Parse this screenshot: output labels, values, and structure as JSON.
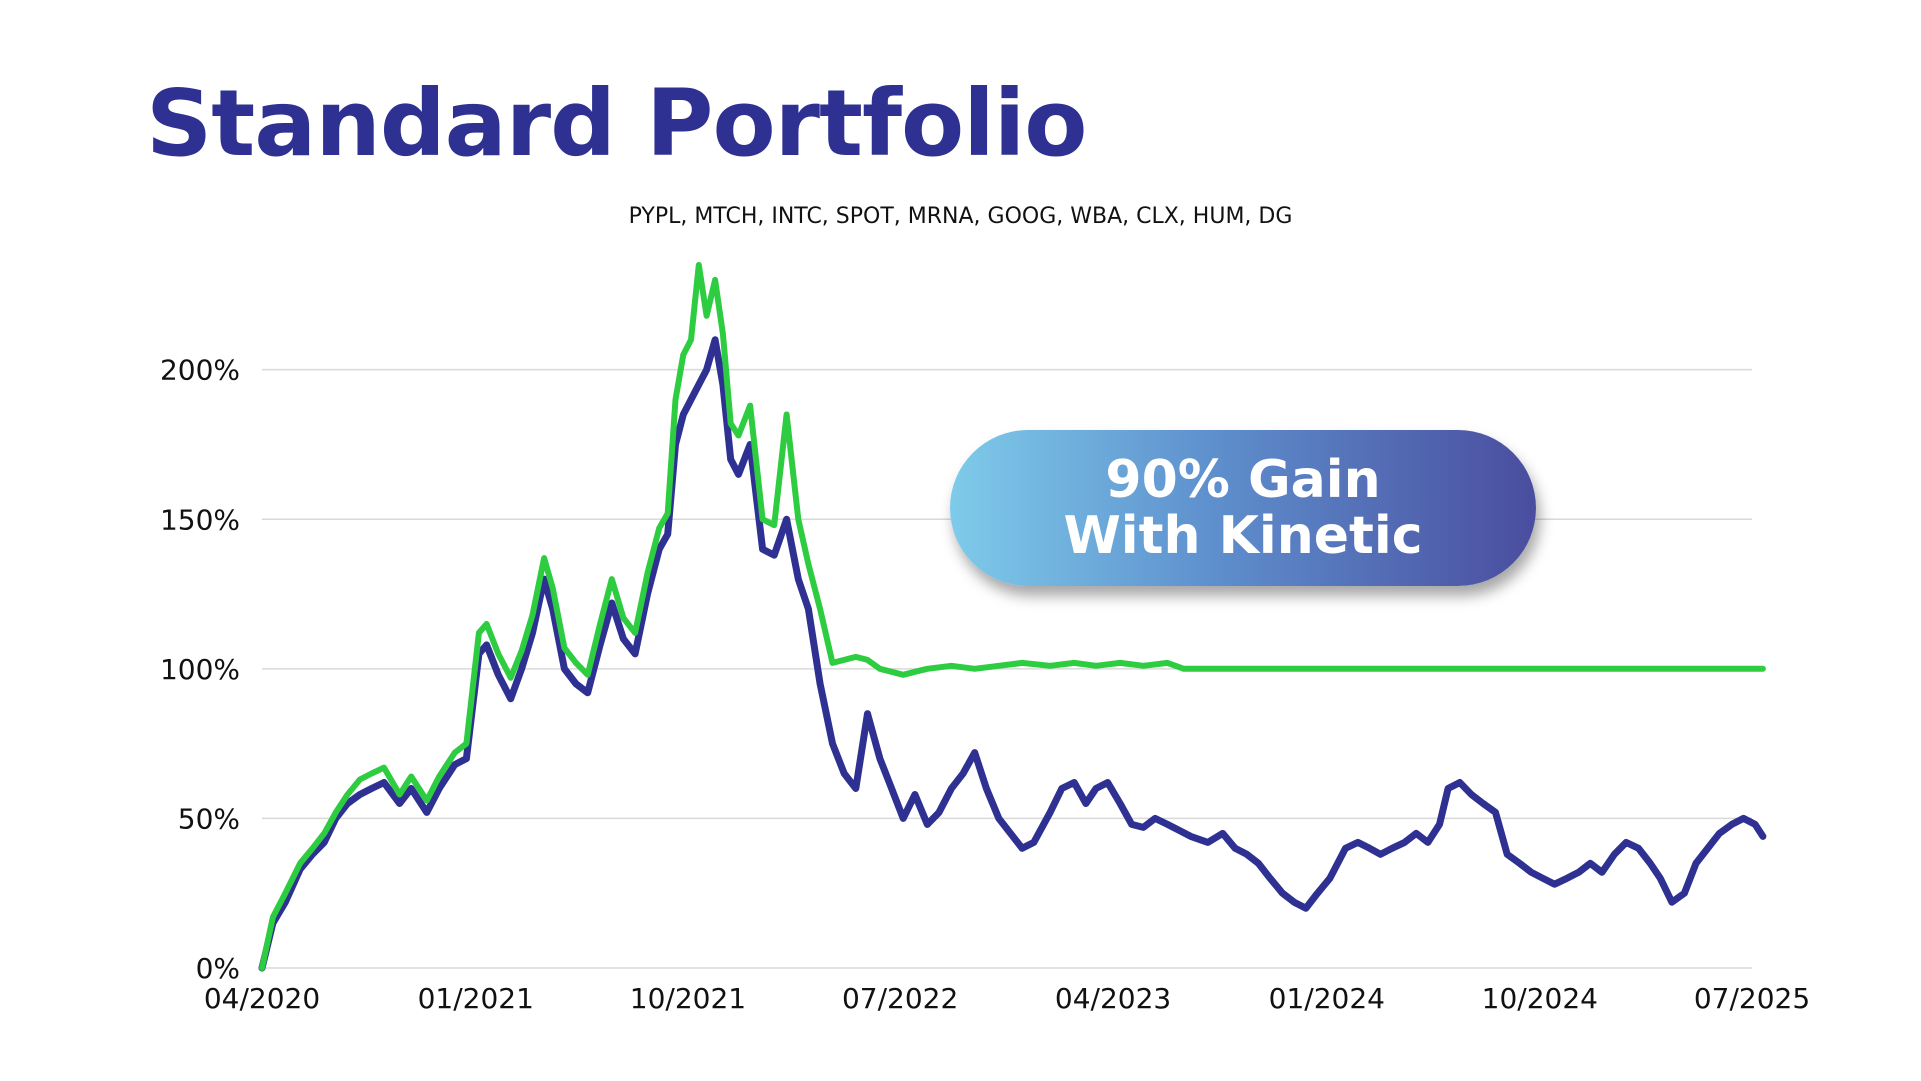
{
  "title": "Standard Portfolio",
  "subtitle": "PYPL, MTCH, INTC, SPOT, MRNA, GOOG, WBA, CLX, HUM, DG",
  "callout": {
    "line1": "90% Gain",
    "line2": "With Kinetic"
  },
  "colors": {
    "title": "#2e3192",
    "standard": "#2e3192",
    "kinetic": "#2ecc40",
    "grid": "#d9d9d9"
  },
  "chart_data": {
    "type": "line",
    "title": "Standard Portfolio",
    "subtitle": "PYPL, MTCH, INTC, SPOT, MRNA, GOOG, WBA, CLX, HUM, DG",
    "xlabel": "",
    "ylabel": "",
    "ylim": [
      0,
      240
    ],
    "xlim": [
      "2020-04",
      "2025-07"
    ],
    "x_ticks": [
      "04/2020",
      "01/2021",
      "10/2021",
      "07/2022",
      "04/2023",
      "01/2024",
      "10/2024",
      "07/2025"
    ],
    "y_ticks": [
      0,
      50,
      100,
      150,
      200
    ],
    "y_tick_labels": [
      "0%",
      "50%",
      "100%",
      "150%",
      "200%"
    ],
    "grid": "horizontal",
    "legend": "none",
    "annotations": [
      "90% Gain With Kinetic"
    ],
    "series": [
      {
        "color": "#2e3192",
        "points": [
          [
            "2020-04-01",
            0
          ],
          [
            "2020-04-15",
            15
          ],
          [
            "2020-05-01",
            22
          ],
          [
            "2020-05-20",
            33
          ],
          [
            "2020-06-05",
            38
          ],
          [
            "2020-06-20",
            42
          ],
          [
            "2020-07-05",
            50
          ],
          [
            "2020-07-20",
            55
          ],
          [
            "2020-08-05",
            58
          ],
          [
            "2020-08-20",
            60
          ],
          [
            "2020-09-05",
            62
          ],
          [
            "2020-09-25",
            55
          ],
          [
            "2020-10-10",
            60
          ],
          [
            "2020-10-30",
            52
          ],
          [
            "2020-11-15",
            60
          ],
          [
            "2020-12-05",
            68
          ],
          [
            "2020-12-20",
            70
          ],
          [
            "2021-01-05",
            105
          ],
          [
            "2021-01-15",
            108
          ],
          [
            "2021-01-30",
            98
          ],
          [
            "2021-02-15",
            90
          ],
          [
            "2021-03-01",
            100
          ],
          [
            "2021-03-15",
            112
          ],
          [
            "2021-03-30",
            130
          ],
          [
            "2021-04-10",
            120
          ],
          [
            "2021-04-25",
            100
          ],
          [
            "2021-05-10",
            95
          ],
          [
            "2021-05-25",
            92
          ],
          [
            "2021-06-10",
            108
          ],
          [
            "2021-06-25",
            122
          ],
          [
            "2021-07-10",
            110
          ],
          [
            "2021-07-25",
            105
          ],
          [
            "2021-08-10",
            125
          ],
          [
            "2021-08-25",
            140
          ],
          [
            "2021-09-05",
            145
          ],
          [
            "2021-09-15",
            175
          ],
          [
            "2021-09-25",
            185
          ],
          [
            "2021-10-05",
            190
          ],
          [
            "2021-10-15",
            195
          ],
          [
            "2021-10-25",
            200
          ],
          [
            "2021-11-05",
            210
          ],
          [
            "2021-11-15",
            195
          ],
          [
            "2021-11-25",
            170
          ],
          [
            "2021-12-05",
            165
          ],
          [
            "2021-12-20",
            175
          ],
          [
            "2022-01-05",
            140
          ],
          [
            "2022-01-20",
            138
          ],
          [
            "2022-02-05",
            150
          ],
          [
            "2022-02-20",
            130
          ],
          [
            "2022-03-05",
            120
          ],
          [
            "2022-03-20",
            95
          ],
          [
            "2022-04-05",
            75
          ],
          [
            "2022-04-20",
            65
          ],
          [
            "2022-05-05",
            60
          ],
          [
            "2022-05-20",
            85
          ],
          [
            "2022-06-05",
            70
          ],
          [
            "2022-06-20",
            60
          ],
          [
            "2022-07-05",
            50
          ],
          [
            "2022-07-20",
            58
          ],
          [
            "2022-08-05",
            48
          ],
          [
            "2022-08-20",
            52
          ],
          [
            "2022-09-05",
            60
          ],
          [
            "2022-09-20",
            65
          ],
          [
            "2022-10-05",
            72
          ],
          [
            "2022-10-20",
            60
          ],
          [
            "2022-11-05",
            50
          ],
          [
            "2022-11-20",
            45
          ],
          [
            "2022-12-05",
            40
          ],
          [
            "2022-12-20",
            42
          ],
          [
            "2023-01-10",
            52
          ],
          [
            "2023-01-25",
            60
          ],
          [
            "2023-02-10",
            62
          ],
          [
            "2023-02-25",
            55
          ],
          [
            "2023-03-10",
            60
          ],
          [
            "2023-03-25",
            62
          ],
          [
            "2023-04-10",
            55
          ],
          [
            "2023-04-25",
            48
          ],
          [
            "2023-05-10",
            47
          ],
          [
            "2023-05-25",
            50
          ],
          [
            "2023-06-10",
            48
          ],
          [
            "2023-06-25",
            46
          ],
          [
            "2023-07-10",
            44
          ],
          [
            "2023-08-01",
            42
          ],
          [
            "2023-08-20",
            45
          ],
          [
            "2023-09-05",
            40
          ],
          [
            "2023-09-20",
            38
          ],
          [
            "2023-10-05",
            35
          ],
          [
            "2023-10-20",
            30
          ],
          [
            "2023-11-05",
            25
          ],
          [
            "2023-11-20",
            22
          ],
          [
            "2023-12-05",
            20
          ],
          [
            "2023-12-20",
            25
          ],
          [
            "2024-01-05",
            30
          ],
          [
            "2024-01-25",
            40
          ],
          [
            "2024-02-10",
            42
          ],
          [
            "2024-02-25",
            40
          ],
          [
            "2024-03-10",
            38
          ],
          [
            "2024-03-25",
            40
          ],
          [
            "2024-04-10",
            42
          ],
          [
            "2024-04-25",
            45
          ],
          [
            "2024-05-10",
            42
          ],
          [
            "2024-05-25",
            48
          ],
          [
            "2024-06-05",
            60
          ],
          [
            "2024-06-20",
            62
          ],
          [
            "2024-07-05",
            58
          ],
          [
            "2024-07-20",
            55
          ],
          [
            "2024-08-05",
            52
          ],
          [
            "2024-08-20",
            38
          ],
          [
            "2024-09-05",
            35
          ],
          [
            "2024-09-20",
            32
          ],
          [
            "2024-10-05",
            30
          ],
          [
            "2024-10-20",
            28
          ],
          [
            "2024-11-05",
            30
          ],
          [
            "2024-11-20",
            32
          ],
          [
            "2024-12-05",
            35
          ],
          [
            "2024-12-20",
            32
          ],
          [
            "2025-01-05",
            38
          ],
          [
            "2025-01-20",
            42
          ],
          [
            "2025-02-05",
            40
          ],
          [
            "2025-02-20",
            35
          ],
          [
            "2025-03-05",
            30
          ],
          [
            "2025-03-20",
            22
          ],
          [
            "2025-04-05",
            25
          ],
          [
            "2025-04-20",
            35
          ],
          [
            "2025-05-05",
            40
          ],
          [
            "2025-05-20",
            45
          ],
          [
            "2025-06-05",
            48
          ],
          [
            "2025-06-20",
            50
          ],
          [
            "2025-07-05",
            48
          ],
          [
            "2025-07-15",
            44
          ]
        ]
      },
      {
        "color": "#2ecc40",
        "points": [
          [
            "2020-04-01",
            0
          ],
          [
            "2020-04-15",
            17
          ],
          [
            "2020-05-01",
            25
          ],
          [
            "2020-05-20",
            35
          ],
          [
            "2020-06-05",
            40
          ],
          [
            "2020-06-20",
            45
          ],
          [
            "2020-07-05",
            52
          ],
          [
            "2020-07-20",
            58
          ],
          [
            "2020-08-05",
            63
          ],
          [
            "2020-08-20",
            65
          ],
          [
            "2020-09-05",
            67
          ],
          [
            "2020-09-25",
            58
          ],
          [
            "2020-10-10",
            64
          ],
          [
            "2020-10-30",
            56
          ],
          [
            "2020-11-15",
            64
          ],
          [
            "2020-12-05",
            72
          ],
          [
            "2020-12-20",
            75
          ],
          [
            "2021-01-05",
            112
          ],
          [
            "2021-01-15",
            115
          ],
          [
            "2021-01-30",
            105
          ],
          [
            "2021-02-15",
            97
          ],
          [
            "2021-03-01",
            106
          ],
          [
            "2021-03-15",
            118
          ],
          [
            "2021-03-30",
            137
          ],
          [
            "2021-04-10",
            127
          ],
          [
            "2021-04-25",
            107
          ],
          [
            "2021-05-10",
            102
          ],
          [
            "2021-05-25",
            98
          ],
          [
            "2021-06-10",
            115
          ],
          [
            "2021-06-25",
            130
          ],
          [
            "2021-07-10",
            117
          ],
          [
            "2021-07-25",
            112
          ],
          [
            "2021-08-10",
            132
          ],
          [
            "2021-08-25",
            147
          ],
          [
            "2021-09-05",
            152
          ],
          [
            "2021-09-15",
            190
          ],
          [
            "2021-09-25",
            205
          ],
          [
            "2021-10-05",
            210
          ],
          [
            "2021-10-15",
            235
          ],
          [
            "2021-10-25",
            218
          ],
          [
            "2021-11-05",
            230
          ],
          [
            "2021-11-15",
            212
          ],
          [
            "2021-11-25",
            182
          ],
          [
            "2021-12-05",
            178
          ],
          [
            "2021-12-20",
            188
          ],
          [
            "2022-01-05",
            150
          ],
          [
            "2022-01-20",
            148
          ],
          [
            "2022-02-05",
            185
          ],
          [
            "2022-02-20",
            150
          ],
          [
            "2022-03-05",
            135
          ],
          [
            "2022-03-20",
            120
          ],
          [
            "2022-04-05",
            102
          ],
          [
            "2022-04-20",
            103
          ],
          [
            "2022-05-05",
            104
          ],
          [
            "2022-05-20",
            103
          ],
          [
            "2022-06-05",
            100
          ],
          [
            "2022-06-20",
            99
          ],
          [
            "2022-07-05",
            98
          ],
          [
            "2022-07-20",
            99
          ],
          [
            "2022-08-05",
            100
          ],
          [
            "2022-09-05",
            101
          ],
          [
            "2022-10-05",
            100
          ],
          [
            "2022-11-05",
            101
          ],
          [
            "2022-12-05",
            102
          ],
          [
            "2023-01-10",
            101
          ],
          [
            "2023-02-10",
            102
          ],
          [
            "2023-03-10",
            101
          ],
          [
            "2023-04-10",
            102
          ],
          [
            "2023-05-10",
            101
          ],
          [
            "2023-06-10",
            102
          ],
          [
            "2023-07-01",
            100
          ],
          [
            "2023-07-15",
            100
          ],
          [
            "2024-01-05",
            100
          ],
          [
            "2024-07-05",
            100
          ],
          [
            "2025-01-05",
            100
          ],
          [
            "2025-07-15",
            100
          ]
        ]
      }
    ]
  }
}
